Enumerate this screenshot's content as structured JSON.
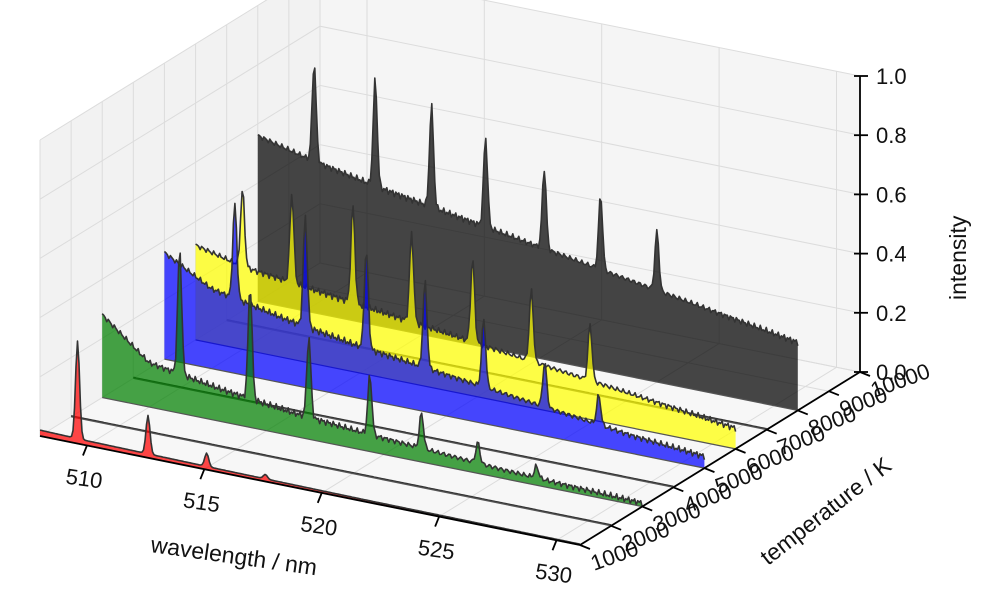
{
  "chart_data": {
    "type": "area",
    "projection": "3d-waterfall",
    "xlabel": "wavelength / nm",
    "ylabel": "temperature / K",
    "zlabel": "intensity",
    "xlim": [
      508,
      531
    ],
    "ylim": [
      1000,
      10000
    ],
    "zlim": [
      0,
      1
    ],
    "x_ticks": [
      510,
      515,
      520,
      525,
      530
    ],
    "y_ticks": [
      1000,
      2000,
      3000,
      4000,
      5000,
      6000,
      7000,
      8000,
      9000,
      10000
    ],
    "z_ticks": [
      "0.0",
      "0.2",
      "0.4",
      "0.6",
      "0.8",
      "1.0"
    ],
    "grid": true,
    "line_x": [
      508,
      510,
      513,
      516,
      519,
      522,
      525,
      528,
      531
    ],
    "series": [
      {
        "temperature": 1000,
        "color": "#ff0000",
        "baseline": [
          0.02,
          0.016,
          0.013,
          0.01,
          0.008,
          0.006,
          0.005,
          0.004,
          0.003
        ],
        "peaks": [
          [
            509.6,
            0.33
          ],
          [
            512.6,
            0.13
          ],
          [
            515.1,
            0.045
          ],
          [
            517.6,
            0.015
          ]
        ]
      },
      {
        "temperature": 2000,
        "color": "#000000",
        "baseline": [
          0.003,
          0.003,
          0.003,
          0.003,
          0.003,
          0.003,
          0.003,
          0.003,
          0.003
        ],
        "peaks": []
      },
      {
        "temperature": 3000,
        "color": "#008000",
        "baseline": [
          0.28,
          0.15,
          0.11,
          0.08,
          0.06,
          0.045,
          0.03,
          0.02,
          0.012
        ],
        "peaks": [
          [
            511.3,
            0.42
          ],
          [
            514.3,
            0.38
          ],
          [
            516.8,
            0.27
          ],
          [
            519.4,
            0.2
          ],
          [
            521.6,
            0.12
          ],
          [
            524.0,
            0.07
          ],
          [
            526.5,
            0.04
          ]
        ]
      },
      {
        "temperature": 4000,
        "color": "#000000",
        "baseline": [
          0.003,
          0.003,
          0.003,
          0.003,
          0.003,
          0.003,
          0.003,
          0.003,
          0.003
        ],
        "peaks": []
      },
      {
        "temperature": 5000,
        "color": "#0000ff",
        "baseline": [
          0.36,
          0.27,
          0.22,
          0.18,
          0.15,
          0.12,
          0.09,
          0.06,
          0.04
        ],
        "peaks": [
          [
            511.0,
            0.32
          ],
          [
            514.0,
            0.37
          ],
          [
            516.6,
            0.33
          ],
          [
            519.1,
            0.29
          ],
          [
            521.6,
            0.23
          ],
          [
            524.2,
            0.15
          ],
          [
            526.5,
            0.1
          ]
        ]
      },
      {
        "temperature": 6000,
        "color": "#ffff00",
        "baseline": [
          0.32,
          0.28,
          0.25,
          0.22,
          0.19,
          0.16,
          0.13,
          0.1,
          0.07
        ],
        "peaks": [
          [
            510.0,
            0.26
          ],
          [
            512.1,
            0.3
          ],
          [
            514.7,
            0.33
          ],
          [
            517.2,
            0.3
          ],
          [
            519.8,
            0.28
          ],
          [
            522.3,
            0.24
          ],
          [
            524.8,
            0.19
          ]
        ]
      },
      {
        "temperature": 7000,
        "color": "#000000",
        "baseline": [
          0.003,
          0.003,
          0.003,
          0.003,
          0.003,
          0.003,
          0.003,
          0.003,
          0.003
        ],
        "peaks": []
      },
      {
        "temperature": 8000,
        "color": "#000000",
        "baseline": [
          0.56,
          0.52,
          0.47,
          0.43,
          0.39,
          0.35,
          0.31,
          0.27,
          0.23
        ],
        "peaks": [
          [
            510.4,
            0.33
          ],
          [
            513.0,
            0.36
          ],
          [
            515.4,
            0.34
          ],
          [
            517.7,
            0.3
          ],
          [
            520.2,
            0.27
          ],
          [
            522.6,
            0.25
          ],
          [
            525.0,
            0.2
          ]
        ]
      }
    ]
  }
}
